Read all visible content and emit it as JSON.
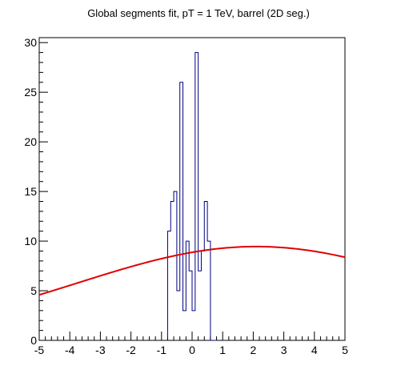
{
  "chart_data": {
    "type": "histogram",
    "title": "Global segments fit, pT = 1 TeV, barrel (2D seg.)",
    "xlabel": "",
    "ylabel": "",
    "xlim": [
      -5,
      5
    ],
    "ylim": [
      0,
      30.5
    ],
    "x_ticks": [
      -5,
      -4,
      -3,
      -2,
      -1,
      0,
      1,
      2,
      3,
      4,
      5
    ],
    "y_ticks": [
      0,
      5,
      10,
      15,
      20,
      25,
      30
    ],
    "x_minor_step": 0.2,
    "y_minor_step": 1,
    "grid": false,
    "legend": "none",
    "histogram": {
      "name": "",
      "color": "#000080",
      "bin_edges": [
        -0.8,
        -0.7,
        -0.6,
        -0.5,
        -0.4,
        -0.3,
        -0.2,
        -0.1,
        0.0,
        0.1,
        0.2,
        0.3,
        0.4,
        0.5,
        0.6,
        0.7,
        0.8
      ],
      "counts": [
        11,
        14,
        15,
        5,
        26,
        3,
        10,
        7,
        3,
        29,
        7,
        9,
        14,
        10,
        0,
        0
      ]
    },
    "fit": {
      "name": "",
      "type": "gaussian",
      "color": "#e00000",
      "amplitude": 9.45,
      "mean": 2.1,
      "sigma": 5.9
    }
  }
}
